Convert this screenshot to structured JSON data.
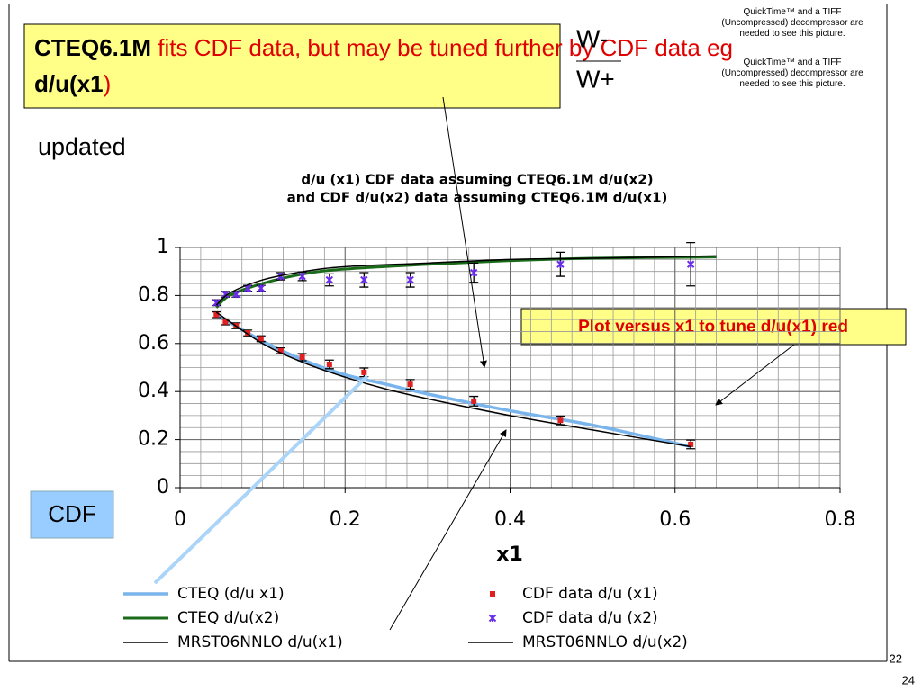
{
  "slide": {
    "headline": {
      "part1": "CTEQ6.1M",
      "part2": " fits CDF data, but may be tuned further by CDF data eg ",
      "part3": "d/u(x1",
      "part4": ")"
    },
    "w_minus": "W-",
    "w_plus": "W+",
    "quicktime_note_1": "QuickTime™ and a TIFF (Uncompressed) decompressor are needed to see this picture.",
    "quicktime_note_2": "QuickTime™ and a TIFF (Uncompressed) decompressor are needed to see this picture.",
    "updated": "updated",
    "cdf_box": "CDF",
    "annotation": "Plot versus x1 to tune d/u(x1) red",
    "page_a": "22",
    "page_b": "24"
  },
  "chart_data": {
    "type": "scatter",
    "title": [
      "d/u (x1) CDF data assuming CTEQ6.1M  d/u(x2)",
      "and CDF d/u(x2) data assuming CTEQ6.1M d/u(x1)"
    ],
    "x_label": "x1",
    "xlim": [
      0,
      0.8
    ],
    "ylim": [
      0,
      1
    ],
    "xticks": [
      0,
      0.2,
      0.4,
      0.6,
      0.8
    ],
    "yticks": [
      0,
      0.2,
      0.4,
      0.6,
      0.8,
      1
    ],
    "grid": true,
    "minor_grid": {
      "x": 0.025,
      "y": 0.05
    },
    "series": [
      {
        "name": "CTEQ (d/u x1)",
        "kind": "line",
        "color": "#7ab4ec",
        "width": 3.5,
        "x": [
          0.044,
          0.1,
          0.15,
          0.2,
          0.25,
          0.3,
          0.4,
          0.5,
          0.62
        ],
        "values": [
          0.72,
          0.61,
          0.53,
          0.47,
          0.43,
          0.39,
          0.32,
          0.26,
          0.17
        ]
      },
      {
        "name": "CDF data d/u (x1)",
        "kind": "points",
        "color": "#e02020",
        "marker": "square",
        "x": [
          0.044,
          0.055,
          0.068,
          0.082,
          0.098,
          0.122,
          0.148,
          0.181,
          0.223,
          0.279,
          0.356,
          0.461,
          0.619
        ],
        "values": [
          0.72,
          0.69,
          0.674,
          0.644,
          0.62,
          0.57,
          0.543,
          0.513,
          0.48,
          0.43,
          0.36,
          0.28,
          0.18
        ],
        "errors": [
          0.012,
          0.012,
          0.012,
          0.012,
          0.012,
          0.012,
          0.015,
          0.018,
          0.018,
          0.02,
          0.02,
          0.018,
          0.018
        ]
      },
      {
        "name": "CTEQ d/u(x2)",
        "kind": "line",
        "color": "#1a6b1a",
        "width": 3,
        "x": [
          0.044,
          0.06,
          0.1,
          0.15,
          0.2,
          0.3,
          0.4,
          0.5,
          0.65
        ],
        "values": [
          0.75,
          0.8,
          0.85,
          0.89,
          0.91,
          0.93,
          0.945,
          0.955,
          0.96
        ]
      },
      {
        "name": "CDF  data d/u (x2)",
        "kind": "points",
        "color": "#6a2ee8",
        "marker": "cross",
        "x": [
          0.044,
          0.055,
          0.068,
          0.082,
          0.098,
          0.122,
          0.148,
          0.181,
          0.223,
          0.279,
          0.356,
          0.461,
          0.619
        ],
        "values": [
          0.77,
          0.805,
          0.805,
          0.83,
          0.83,
          0.88,
          0.88,
          0.865,
          0.865,
          0.865,
          0.895,
          0.93,
          0.93
        ],
        "errors": [
          0.012,
          0.012,
          0.012,
          0.012,
          0.012,
          0.015,
          0.018,
          0.025,
          0.03,
          0.03,
          0.04,
          0.05,
          0.09
        ]
      },
      {
        "name": "MRST06NNLO d/u(x1)",
        "kind": "line",
        "color": "#000000",
        "width": 1.5,
        "x": [
          0.044,
          0.1,
          0.15,
          0.2,
          0.25,
          0.3,
          0.4,
          0.5,
          0.62
        ],
        "values": [
          0.73,
          0.6,
          0.52,
          0.46,
          0.41,
          0.37,
          0.3,
          0.24,
          0.17
        ]
      },
      {
        "name": "MRST06NNLO d/u(x2)",
        "kind": "line",
        "color": "#000000",
        "width": 1.5,
        "x": [
          0.044,
          0.06,
          0.1,
          0.15,
          0.2,
          0.3,
          0.4,
          0.5,
          0.65
        ],
        "values": [
          0.76,
          0.81,
          0.865,
          0.9,
          0.92,
          0.935,
          0.95,
          0.955,
          0.965
        ]
      }
    ]
  }
}
